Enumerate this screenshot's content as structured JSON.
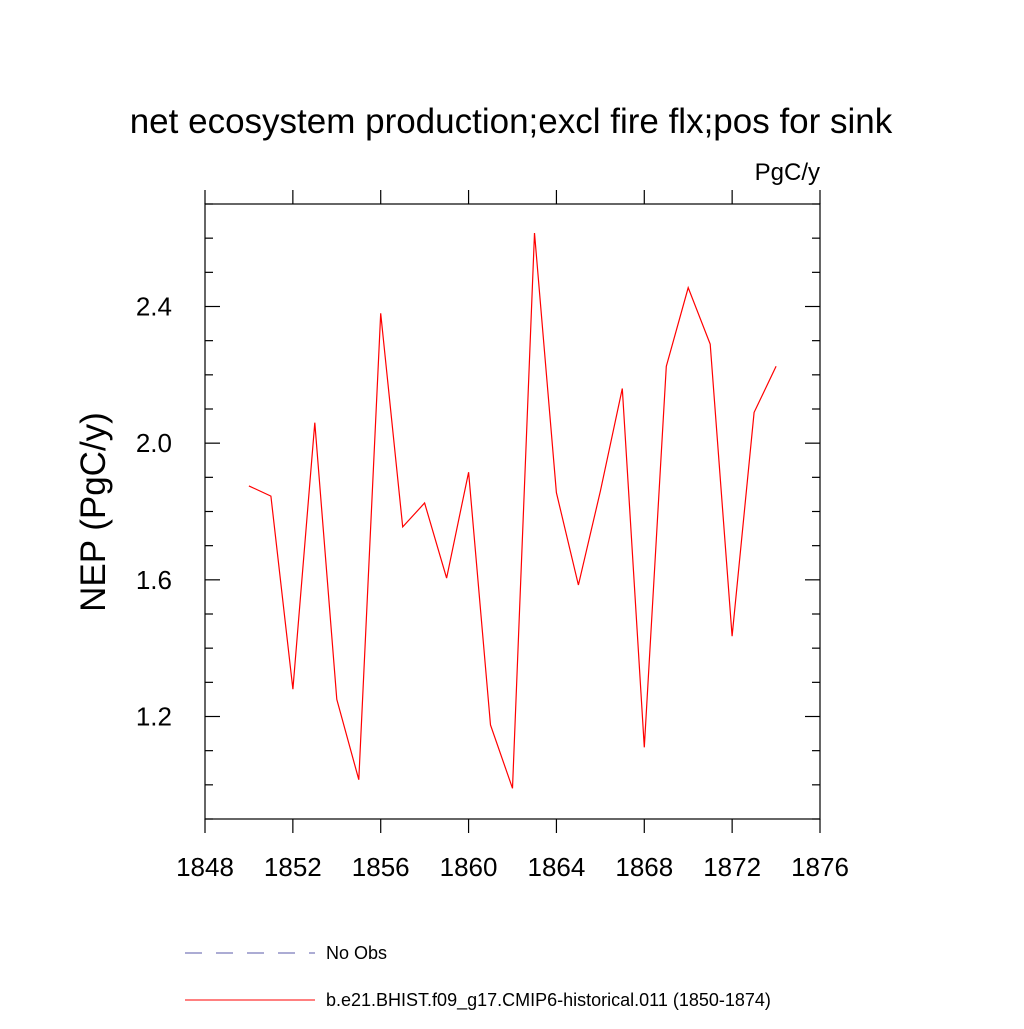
{
  "chart_data": {
    "type": "line",
    "title": "net ecosystem production;excl fire flx;pos for sink",
    "units_label": "PgC/y",
    "xlabel": "",
    "ylabel": "NEP  (PgC/y)",
    "xlim": [
      1848,
      1876
    ],
    "ylim": [
      0.9,
      2.7
    ],
    "xticks": [
      1848,
      1852,
      1856,
      1860,
      1864,
      1868,
      1872,
      1876
    ],
    "yticks": [
      1.2,
      1.6,
      2.0,
      2.4
    ],
    "ytick_labels": [
      "1.2",
      "1.6",
      "2.0",
      "2.4"
    ],
    "grid": false,
    "legend_position": "bottom",
    "series": [
      {
        "name": "No Obs",
        "color": "#5a5aa8",
        "dash": "dashed",
        "x": [],
        "y": []
      },
      {
        "name": "b.e21.BHIST.f09_g17.CMIP6-historical.011 (1850-1874)",
        "color": "#ff0000",
        "dash": "solid",
        "x": [
          1850,
          1851,
          1852,
          1853,
          1854,
          1855,
          1856,
          1857,
          1858,
          1859,
          1860,
          1861,
          1862,
          1863,
          1864,
          1865,
          1866,
          1867,
          1868,
          1869,
          1870,
          1871,
          1872,
          1873,
          1874
        ],
        "y": [
          1.875,
          1.845,
          1.28,
          2.06,
          1.25,
          1.015,
          2.38,
          1.755,
          1.825,
          1.605,
          1.915,
          1.175,
          0.99,
          2.615,
          1.855,
          1.585,
          1.86,
          2.16,
          1.11,
          2.225,
          2.455,
          2.29,
          1.435,
          2.09,
          2.225
        ]
      }
    ]
  }
}
